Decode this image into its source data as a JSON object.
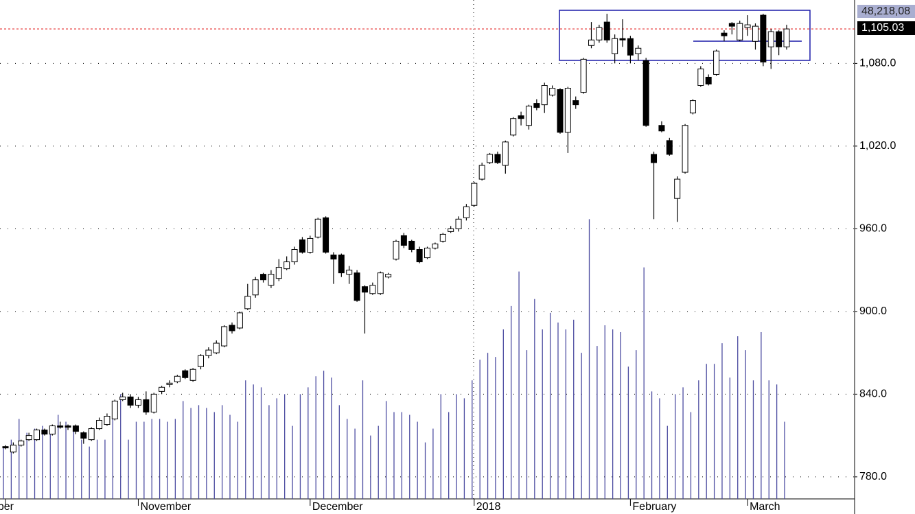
{
  "chart_data": {
    "type": "candlestick",
    "categories": [
      "ber",
      null,
      null,
      null,
      null,
      null,
      null,
      null,
      null,
      null,
      null,
      null,
      null,
      null,
      null,
      null,
      null,
      "November",
      null,
      null,
      null,
      null,
      null,
      null,
      null,
      null,
      null,
      null,
      null,
      null,
      null,
      null,
      null,
      null,
      null,
      null,
      null,
      null,
      null,
      "December",
      null,
      null,
      null,
      null,
      null,
      null,
      null,
      null,
      null,
      null,
      null,
      null,
      null,
      null,
      null,
      null,
      null,
      null,
      null,
      null,
      "2018",
      null,
      null,
      null,
      null,
      null,
      null,
      null,
      null,
      null,
      null,
      null,
      null,
      null,
      null,
      null,
      null,
      null,
      null,
      null,
      "February",
      null,
      null,
      null,
      null,
      null,
      null,
      null,
      null,
      null,
      null,
      null,
      null,
      null,
      null,
      "March",
      null,
      null,
      null,
      null,
      null
    ],
    "open": [
      802,
      798,
      803,
      807,
      807,
      814,
      811,
      817,
      817,
      817,
      812,
      807,
      815,
      818,
      822,
      836,
      838,
      832,
      836,
      827,
      842,
      847,
      849,
      857,
      850,
      860,
      868,
      870,
      875,
      890,
      888,
      902,
      912,
      927,
      919,
      924,
      931,
      936,
      952,
      943,
      954,
      968,
      941,
      941,
      927,
      928,
      918,
      913,
      913,
      925,
      938,
      955,
      951,
      945,
      939,
      946,
      951,
      958,
      960,
      968,
      977,
      996,
      1008,
      1014,
      1006,
      1028,
      1042,
      1035,
      1051,
      1050,
      1057,
      1061,
      1030,
      1053,
      1059,
      1093,
      1097,
      1110,
      1087,
      1098,
      1098,
      1087,
      1082,
      1014,
      1035,
      1024,
      982,
      1001,
      1044,
      1064,
      1070,
      1072,
      1102,
      1109,
      1097,
      1106,
      1096,
      1115,
      1092,
      1103,
      1092
    ],
    "high": [
      803,
      805,
      807,
      812,
      815,
      815,
      818,
      820,
      818,
      818,
      813,
      816,
      823,
      826,
      836,
      841,
      840,
      838,
      842,
      841,
      846,
      850,
      854,
      858,
      859,
      869,
      874,
      879,
      890,
      892,
      900,
      920,
      925,
      928,
      930,
      938,
      940,
      947,
      954,
      955,
      968,
      969,
      943,
      942,
      933,
      930,
      919,
      921,
      929,
      928,
      952,
      957,
      952,
      947,
      947,
      950,
      957,
      962,
      969,
      978,
      994,
      1008,
      1015,
      1016,
      1024,
      1041,
      1045,
      1050,
      1054,
      1066,
      1064,
      1062,
      1063,
      1056,
      1084,
      1110,
      1108,
      1116,
      1101,
      1112,
      1100,
      1093,
      1084,
      1016,
      1038,
      1026,
      998,
      1036,
      1054,
      1078,
      1072,
      1090,
      1104,
      1110,
      1111,
      1115,
      1109,
      1116,
      1105,
      1104,
      1108
    ],
    "low": [
      800,
      797,
      802,
      806,
      806,
      810,
      810,
      815,
      814,
      811,
      804,
      806,
      814,
      817,
      821,
      835,
      830,
      830,
      825,
      826,
      840,
      845,
      848,
      851,
      849,
      858,
      866,
      869,
      874,
      884,
      887,
      901,
      910,
      921,
      917,
      922,
      930,
      934,
      942,
      942,
      953,
      942,
      920,
      925,
      920,
      907,
      884,
      912,
      912,
      924,
      937,
      946,
      943,
      935,
      938,
      945,
      950,
      957,
      958,
      966,
      976,
      995,
      1007,
      1007,
      1000,
      1027,
      1035,
      1032,
      1046,
      1044,
      1056,
      1029,
      1015,
      1047,
      1058,
      1091,
      1095,
      1095,
      1080,
      1092,
      1080,
      1082,
      1034,
      967,
      1030,
      1013,
      965,
      1000,
      1043,
      1063,
      1064,
      1071,
      1096,
      1101,
      1096,
      1100,
      1090,
      1078,
      1076,
      1086,
      1090
    ],
    "close": [
      801,
      803,
      806,
      810,
      814,
      811,
      817,
      816,
      816,
      813,
      808,
      815,
      821,
      824,
      835,
      838,
      832,
      836,
      827,
      840,
      845,
      848,
      853,
      852,
      858,
      868,
      872,
      877,
      889,
      886,
      899,
      911,
      923,
      923,
      927,
      932,
      936,
      945,
      943,
      953,
      967,
      943,
      938,
      928,
      930,
      908,
      914,
      919,
      928,
      927,
      951,
      948,
      945,
      936,
      946,
      949,
      956,
      960,
      967,
      976,
      993,
      1006,
      1014,
      1008,
      1023,
      1040,
      1040,
      1049,
      1048,
      1064,
      1062,
      1030,
      1062,
      1050,
      1083,
      1097,
      1106,
      1097,
      1098,
      1097,
      1086,
      1091,
      1035,
      1008,
      1031,
      1014,
      996,
      1035,
      1053,
      1076,
      1065,
      1089,
      1100,
      1107,
      1109,
      1108,
      1107,
      1081,
      1103,
      1092,
      1105
    ],
    "volume": [
      802,
      807,
      822,
      812,
      815,
      817,
      817,
      825,
      820,
      817,
      807,
      802,
      807,
      807,
      822,
      840,
      807,
      820,
      820,
      822,
      822,
      820,
      822,
      835,
      830,
      832,
      830,
      827,
      832,
      825,
      820,
      850,
      847,
      845,
      832,
      837,
      840,
      817,
      840,
      845,
      853,
      857,
      852,
      832,
      822,
      815,
      850,
      810,
      817,
      835,
      827,
      827,
      825,
      820,
      805,
      815,
      840,
      827,
      840,
      837,
      850,
      865,
      870,
      867,
      887,
      904,
      929,
      872,
      909,
      887,
      899,
      892,
      887,
      894,
      870,
      967,
      875,
      890,
      887,
      885,
      860,
      872,
      932,
      842,
      837,
      817,
      840,
      845,
      827,
      850,
      862,
      862,
      877,
      852,
      882,
      872,
      850,
      885,
      850,
      847,
      820
    ],
    "up_color": "#ffffff",
    "down_color": "#000000",
    "volume_color": "#4b4ba0",
    "ylim": [
      764,
      1126
    ],
    "yticks": [
      {
        "value": 780,
        "label": "780.0"
      },
      {
        "value": 840,
        "label": "840.0"
      },
      {
        "value": 900,
        "label": "900.0"
      },
      {
        "value": 960,
        "label": "960.0"
      },
      {
        "value": 1020,
        "label": "1,020.0"
      },
      {
        "value": 1080,
        "label": "1,080.0"
      }
    ],
    "grid": true,
    "last_price": {
      "value": 1105.03,
      "label": "1,105.03"
    },
    "volume_label": "48,218,08"
  }
}
